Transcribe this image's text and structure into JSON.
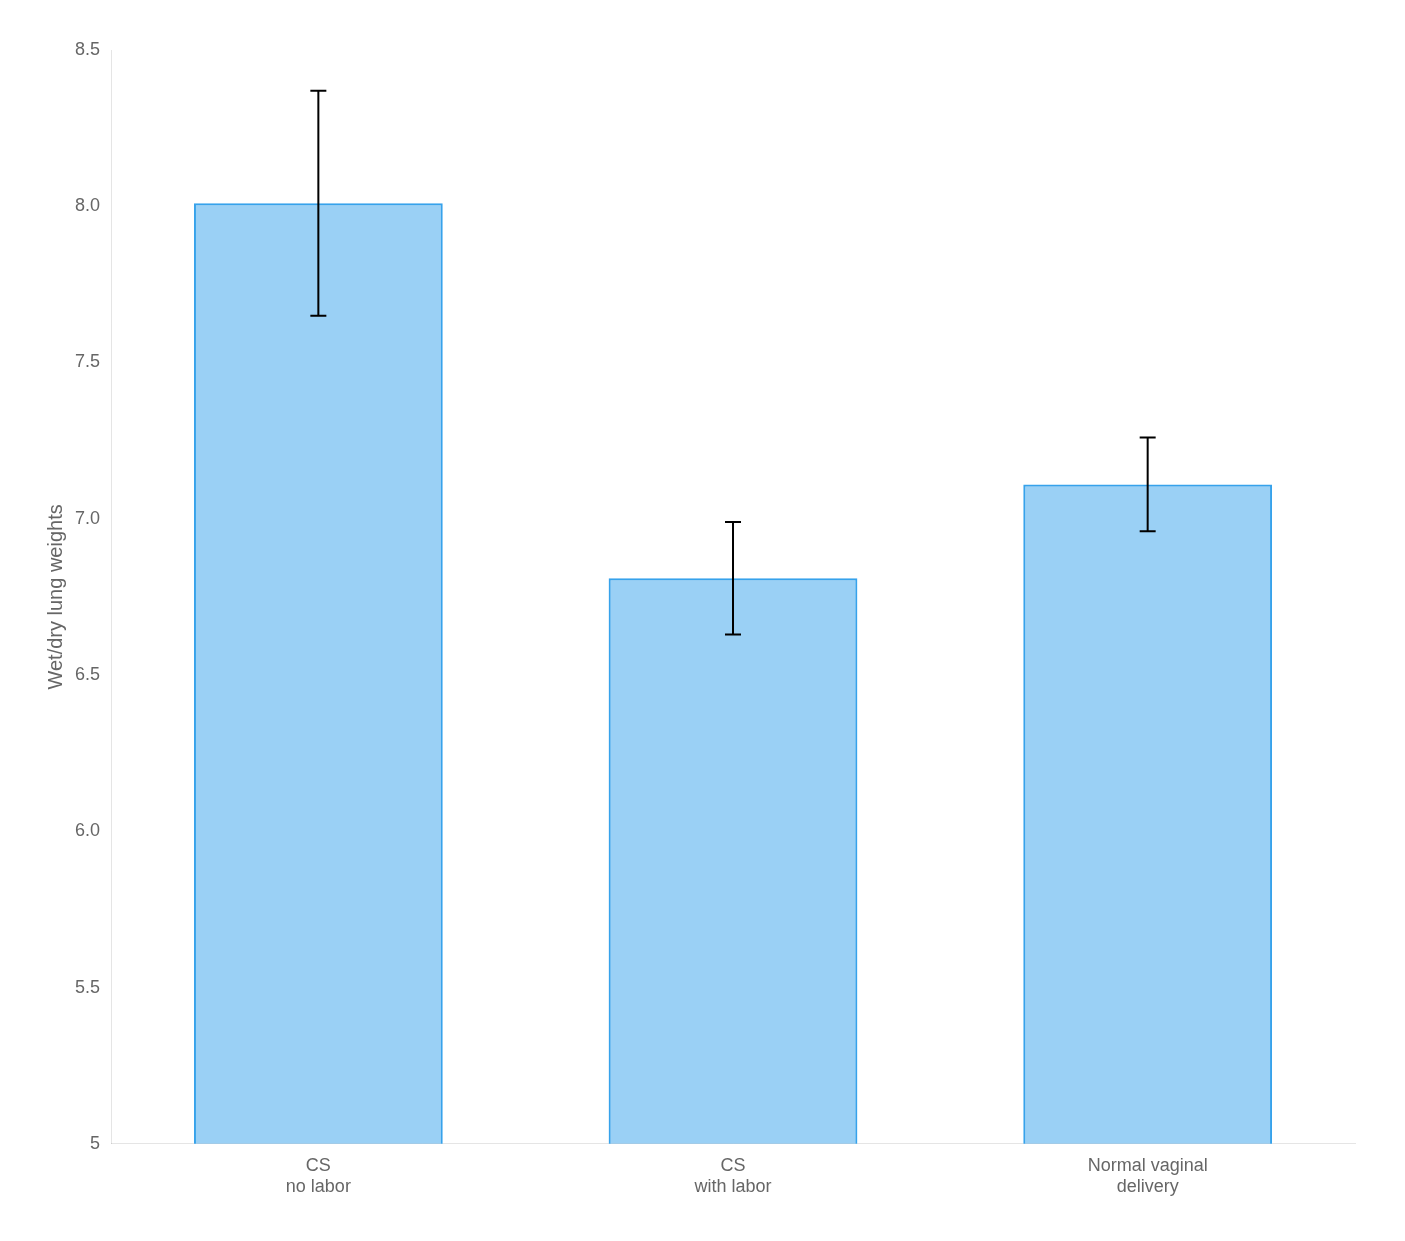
{
  "chart_data": {
    "type": "bar",
    "categories": [
      "CS\nno labor",
      "CS\nwith labor",
      "Normal vaginal\ndelivery"
    ],
    "values": [
      8.01,
      6.81,
      7.11
    ],
    "errors": [
      0.36,
      0.18,
      0.15
    ],
    "ylabel": "Wet/dry lung weights",
    "ylim": [
      5.0,
      8.5
    ],
    "yticks": [
      5,
      5.5,
      {
        "value": 6.0,
        "label": "6.0"
      },
      6.5,
      {
        "value": 7.0,
        "label": "7.0"
      },
      7.5,
      {
        "value": 8.0,
        "label": "8.0"
      },
      8.5
    ],
    "grid": false
  }
}
